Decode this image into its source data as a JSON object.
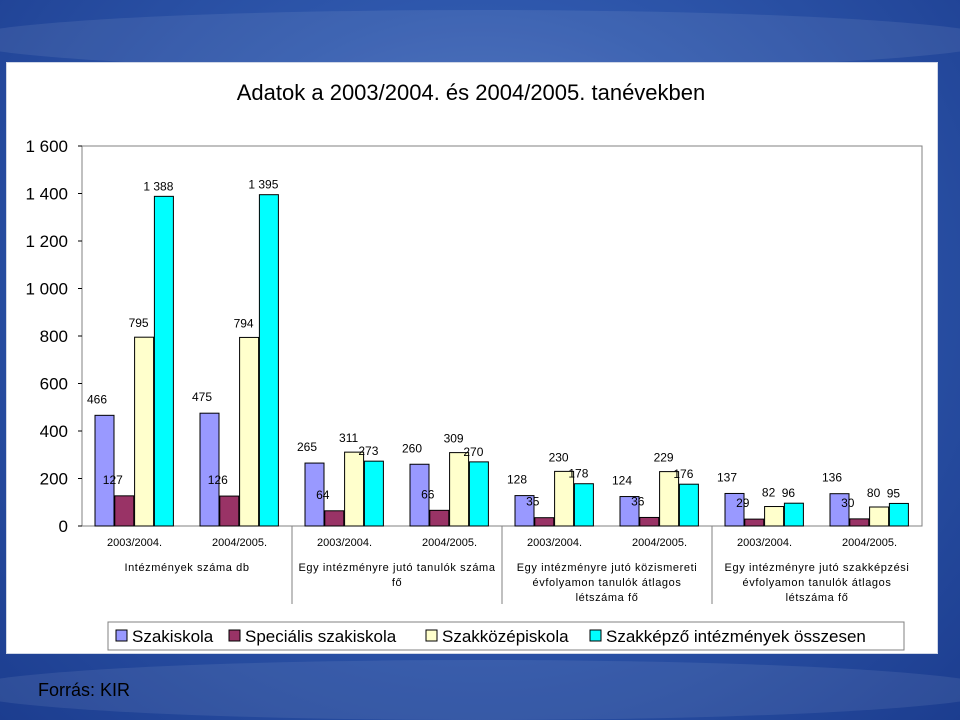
{
  "title": "Adatok a 2003/2004. és 2004/2005. tanévekben",
  "source": "Forrás: KIR",
  "colors": {
    "Szakiskola": "#9999ff",
    "Speciális szakiskola": "#993366",
    "Szakközépiskola": "#ffffcc",
    "Szakképző intézmények összesen": "#00ffff"
  },
  "chart_data": {
    "type": "bar",
    "ylim": [
      0,
      1600
    ],
    "yticks": [
      "0",
      "200",
      "400",
      "600",
      "800",
      "1 000",
      "1 200",
      "1 400",
      "1 600"
    ],
    "ytick_values": [
      0,
      200,
      400,
      600,
      800,
      1000,
      1200,
      1400,
      1600
    ],
    "legend_position": "bottom",
    "series_names": [
      "Szakiskola",
      "Speciális szakiskola",
      "Szakközépiskola",
      "Szakképző intézmények összesen"
    ],
    "groups": [
      {
        "label": "Intézmények száma db",
        "years": [
          {
            "year": "2003/2004.",
            "values": [
              466,
              127,
              795,
              1388
            ],
            "labels": [
              "466",
              "127",
              "795",
              "1 388"
            ]
          },
          {
            "year": "2004/2005.",
            "values": [
              475,
              126,
              794,
              1395
            ],
            "labels": [
              "475",
              "126",
              "794",
              "1 395"
            ]
          }
        ]
      },
      {
        "label": "Egy intézményre jutó tanulók száma fő",
        "years": [
          {
            "year": "2003/2004.",
            "values": [
              265,
              64,
              311,
              273
            ],
            "labels": [
              "265",
              "64",
              "311",
              "273"
            ]
          },
          {
            "year": "2004/2005.",
            "values": [
              260,
              66,
              309,
              270
            ],
            "labels": [
              "260",
              "66",
              "309",
              "270"
            ]
          }
        ]
      },
      {
        "label": "Egy intézményre jutó közismereti évfolyamon tanulók átlagos létszáma fő",
        "years": [
          {
            "year": "2003/2004.",
            "values": [
              128,
              35,
              230,
              178
            ],
            "labels": [
              "128",
              "35",
              "230",
              "178"
            ]
          },
          {
            "year": "2004/2005.",
            "values": [
              124,
              36,
              229,
              176
            ],
            "labels": [
              "124",
              "36",
              "229",
              "176"
            ]
          }
        ]
      },
      {
        "label": "Egy intézményre jutó szakképzési évfolyamon tanulók átlagos létszáma fő",
        "years": [
          {
            "year": "2003/2004.",
            "values": [
              137,
              29,
              82,
              96
            ],
            "labels": [
              "137",
              "29",
              "82",
              "96"
            ]
          },
          {
            "year": "2004/2005.",
            "values": [
              136,
              30,
              80,
              95
            ],
            "labels": [
              "136",
              "30",
              "80",
              "95"
            ]
          }
        ]
      }
    ]
  }
}
